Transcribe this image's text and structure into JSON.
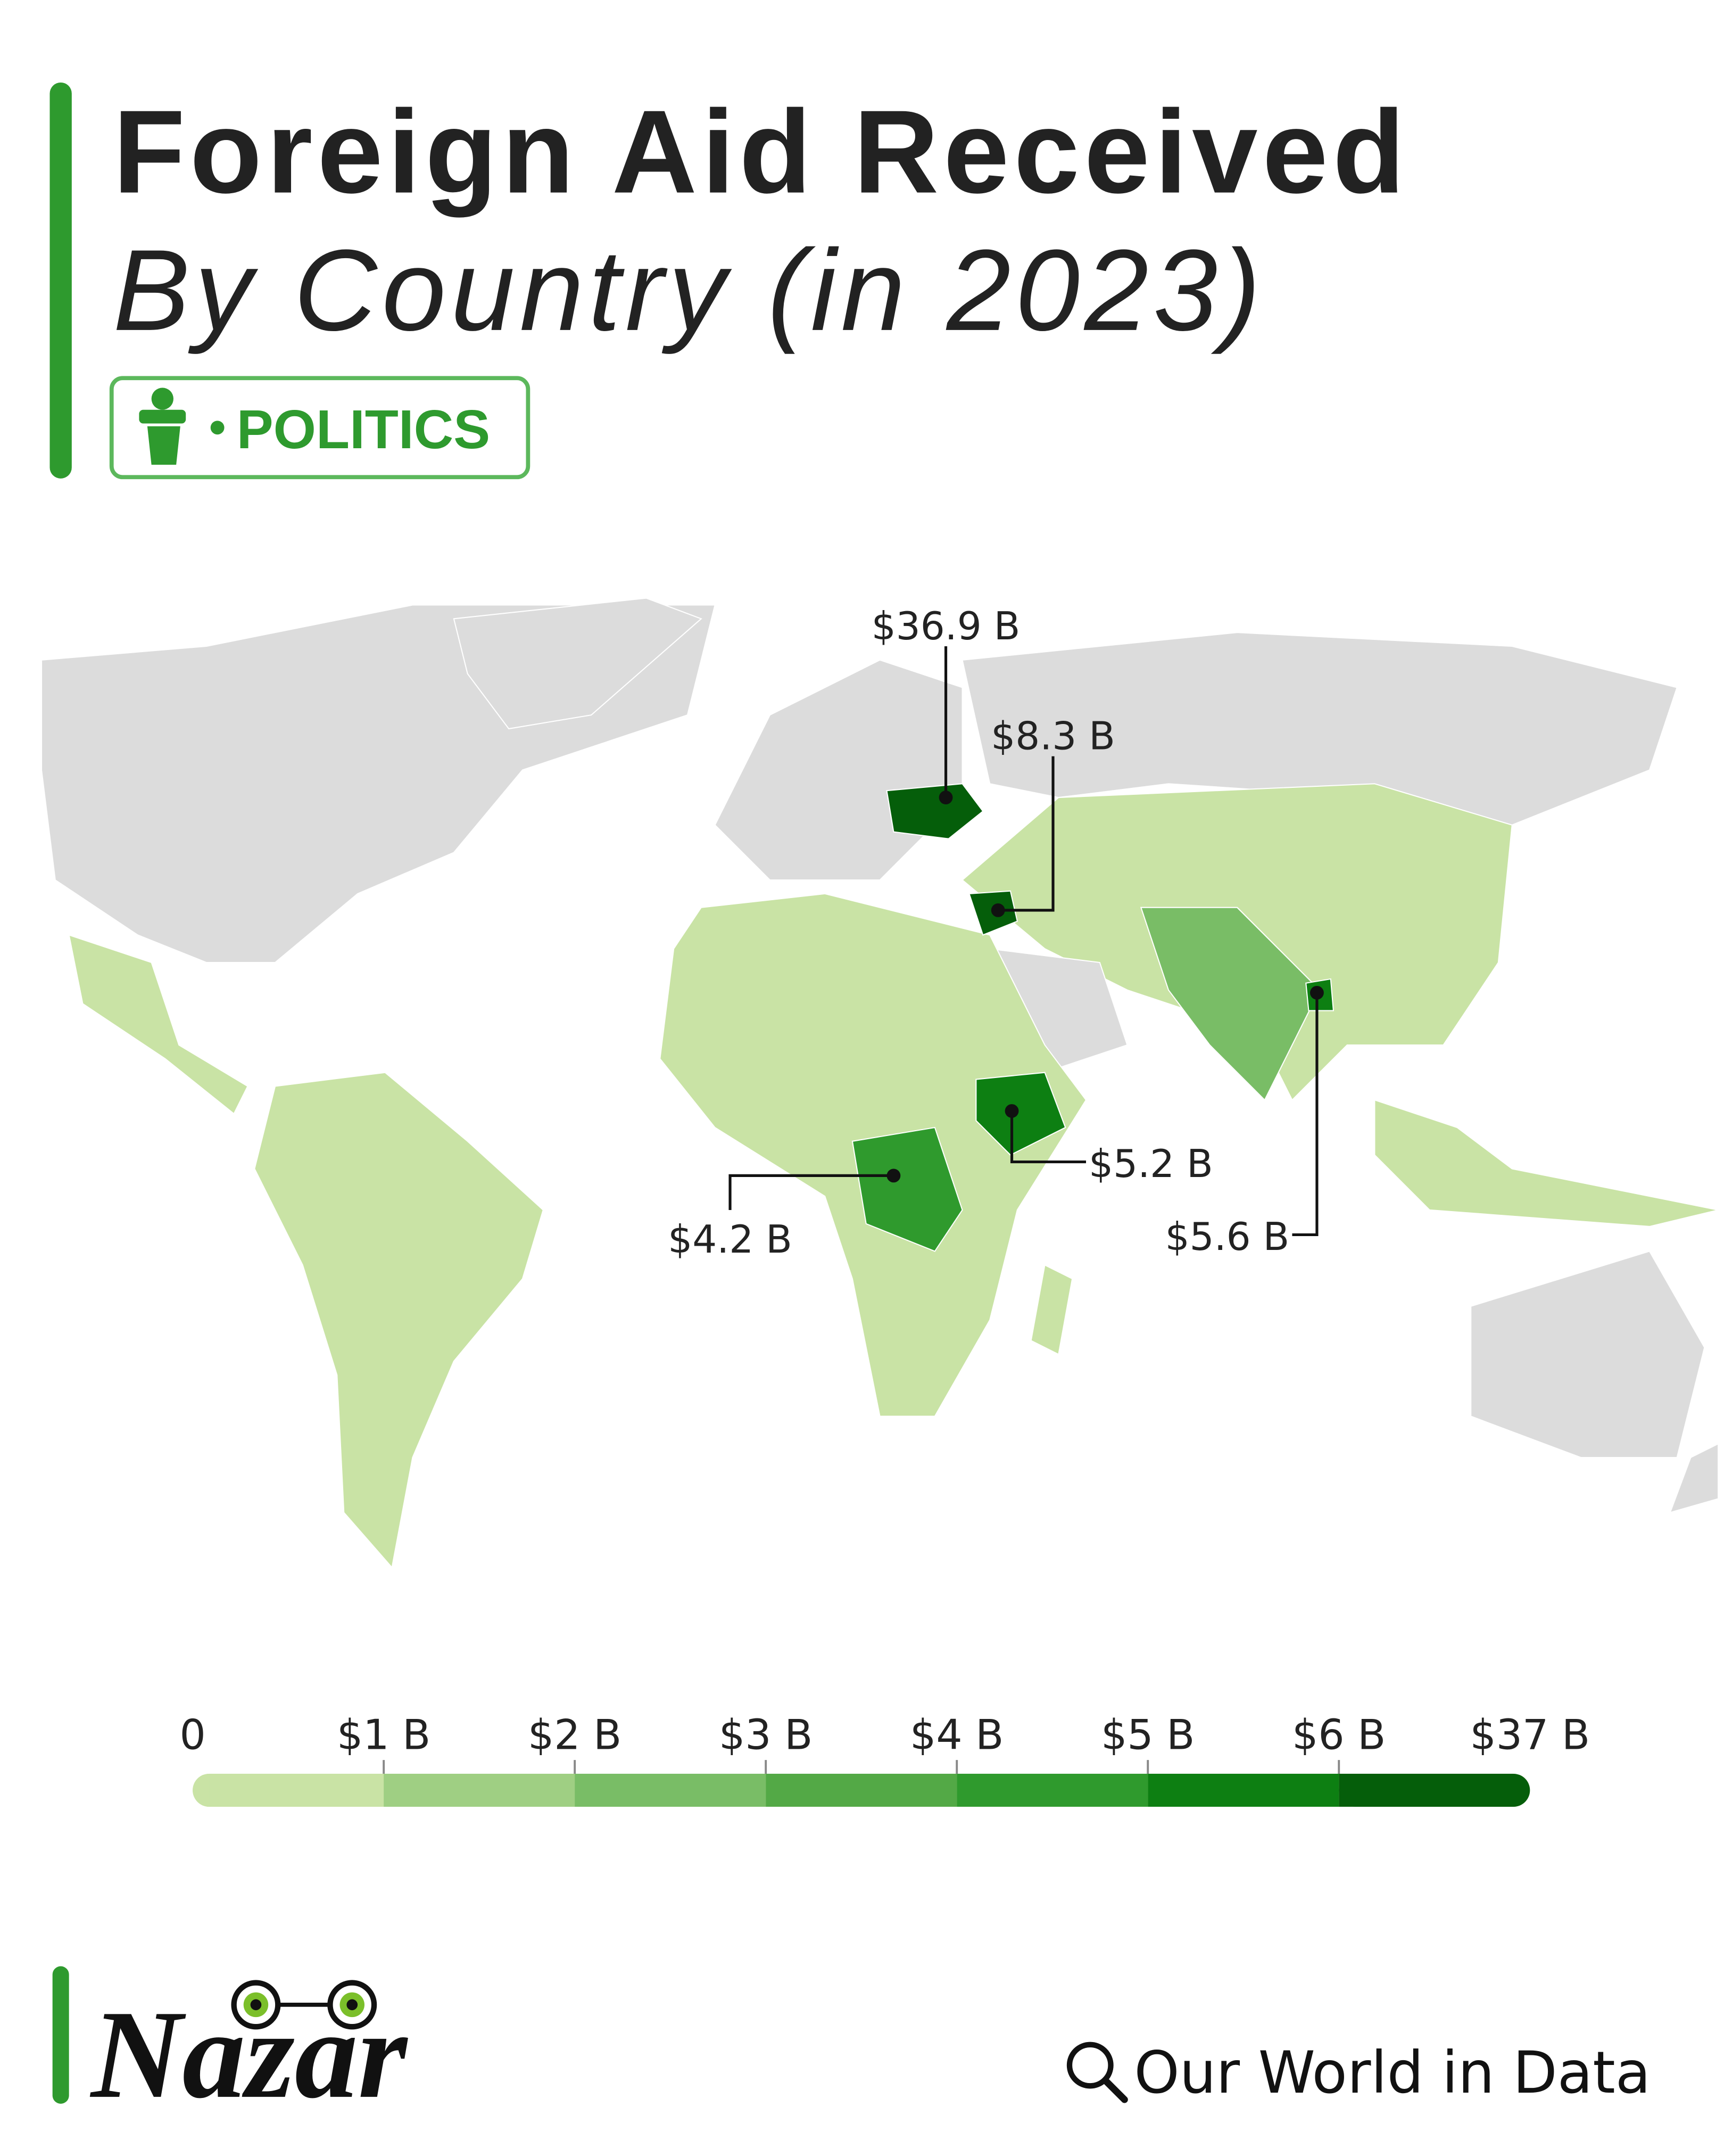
{
  "header": {
    "title": "Foreign Aid Received",
    "subtitle": "By Country (in 2023)",
    "tag": "POLITICS"
  },
  "chart_data": {
    "type": "choropleth",
    "annotations": [
      {
        "value": 36.9,
        "label": "$36.9 B"
      },
      {
        "value": 8.3,
        "label": "$8.3 B"
      },
      {
        "value": 5.2,
        "label": "$5.2 B"
      },
      {
        "value": 4.2,
        "label": "$4.2 B"
      },
      {
        "value": 5.6,
        "label": "$5.6 B"
      }
    ],
    "legend": {
      "ticks": [
        0,
        {
          "value": 1,
          "label": "$1 B"
        },
        {
          "value": 2,
          "label": "$2 B"
        },
        {
          "value": 3,
          "label": "$3 B"
        },
        {
          "value": 4,
          "label": "$4 B"
        },
        {
          "value": 5,
          "label": "$5 B"
        },
        {
          "value": 6,
          "label": "$6 B"
        },
        {
          "value": 37,
          "label": "$37 B"
        }
      ],
      "colors": [
        "#c9e3a5",
        "#9fcf83",
        "#79bd66",
        "#53a946",
        "#2f9a2d",
        "#0d7f12",
        "#055e0a"
      ]
    }
  },
  "footer": {
    "logo": "Nazar",
    "source": "Our World in Data"
  }
}
